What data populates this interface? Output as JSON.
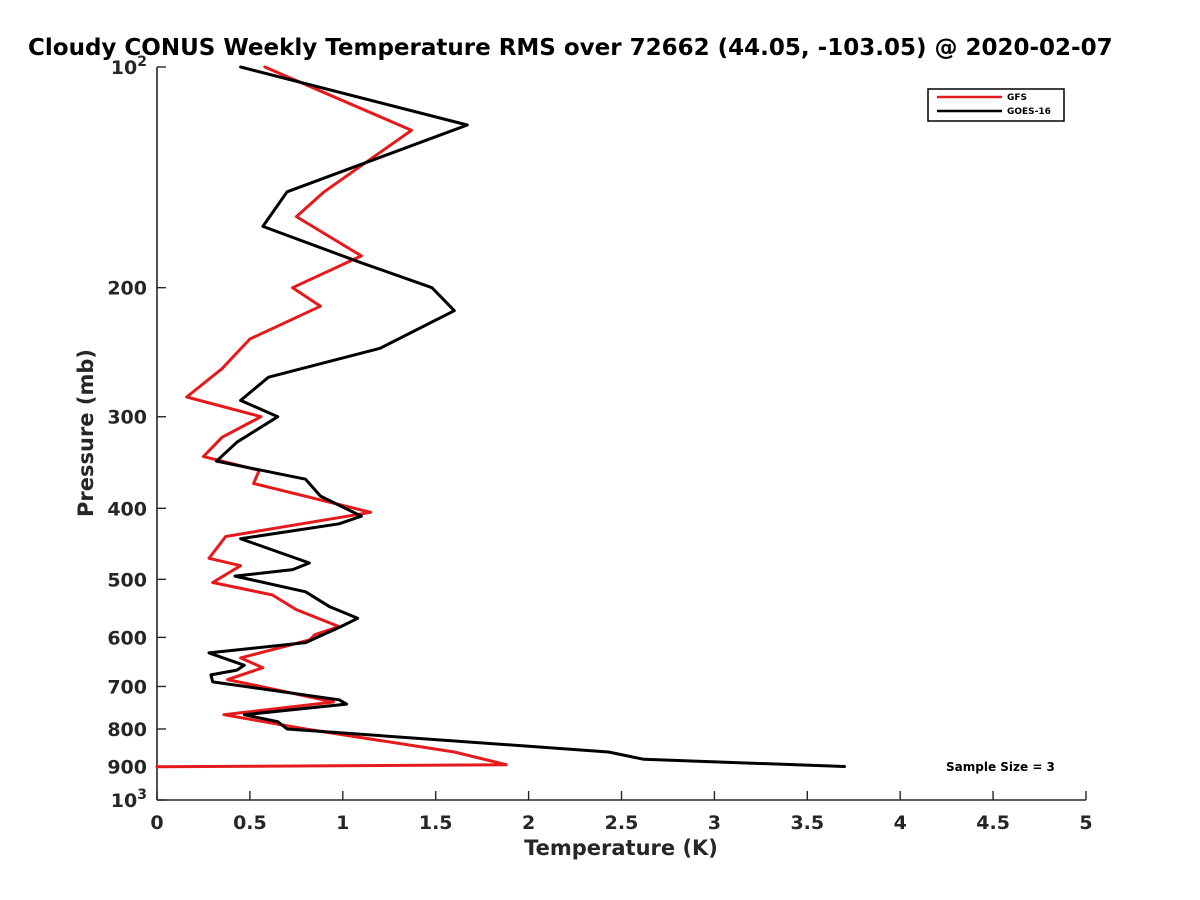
{
  "chart_data": {
    "type": "line",
    "title": "Cloudy CONUS Weekly Temperature RMS over 72662 (44.05, -103.05) @ 2020-02-07",
    "xlabel": "Temperature (K)",
    "ylabel": "Pressure (mb)",
    "xlim": [
      0,
      5
    ],
    "ylim": [
      100,
      1000
    ],
    "yscale": "log",
    "y_reversed": true,
    "x_ticks": [
      "0",
      "0.5",
      "1",
      "1.5",
      "2",
      "2.5",
      "3",
      "3.5",
      "4",
      "4.5",
      "5"
    ],
    "y_ticks": [
      {
        "value": 100,
        "base": "10",
        "exp": "2"
      },
      {
        "value": 200,
        "label": "200"
      },
      {
        "value": 300,
        "label": "300"
      },
      {
        "value": 400,
        "label": "400"
      },
      {
        "value": 500,
        "label": "500"
      },
      {
        "value": 600,
        "label": "600"
      },
      {
        "value": 700,
        "label": "700"
      },
      {
        "value": 800,
        "label": "800"
      },
      {
        "value": 900,
        "label": "900"
      },
      {
        "value": 1000,
        "base": "10",
        "exp": "3"
      }
    ],
    "legend_position": "top-right",
    "annotation": "Sample Size = 3",
    "series": [
      {
        "name": "GFS",
        "color": "#e41a1c",
        "points": [
          [
            0.58,
            100
          ],
          [
            1.37,
            122
          ],
          [
            0.9,
            148
          ],
          [
            0.75,
            160
          ],
          [
            1.1,
            181
          ],
          [
            0.73,
            200
          ],
          [
            0.88,
            212
          ],
          [
            0.5,
            235
          ],
          [
            0.35,
            258
          ],
          [
            0.16,
            282
          ],
          [
            0.56,
            300
          ],
          [
            0.35,
            320
          ],
          [
            0.25,
            340
          ],
          [
            0.55,
            355
          ],
          [
            0.52,
            370
          ],
          [
            1.15,
            405
          ],
          [
            0.37,
            437
          ],
          [
            0.28,
            468
          ],
          [
            0.45,
            479
          ],
          [
            0.3,
            505
          ],
          [
            0.62,
            525
          ],
          [
            0.75,
            550
          ],
          [
            0.98,
            580
          ],
          [
            0.85,
            595
          ],
          [
            0.82,
            605
          ],
          [
            0.45,
            640
          ],
          [
            0.57,
            660
          ],
          [
            0.38,
            685
          ],
          [
            0.5,
            695
          ],
          [
            0.95,
            735
          ],
          [
            0.36,
            765
          ],
          [
            0.8,
            800
          ],
          [
            1.6,
            860
          ],
          [
            1.88,
            895
          ],
          [
            0.0,
            901
          ]
        ]
      },
      {
        "name": "GOES-16",
        "color": "#000000",
        "points": [
          [
            0.45,
            100
          ],
          [
            1.67,
            120
          ],
          [
            0.7,
            148
          ],
          [
            0.57,
            165
          ],
          [
            1.1,
            185
          ],
          [
            1.48,
            200
          ],
          [
            1.6,
            215
          ],
          [
            1.2,
            242
          ],
          [
            0.6,
            265
          ],
          [
            0.45,
            285
          ],
          [
            0.65,
            300
          ],
          [
            0.43,
            325
          ],
          [
            0.32,
            345
          ],
          [
            0.8,
            365
          ],
          [
            0.88,
            385
          ],
          [
            1.1,
            410
          ],
          [
            0.98,
            420
          ],
          [
            0.45,
            440
          ],
          [
            0.82,
            475
          ],
          [
            0.73,
            485
          ],
          [
            0.42,
            495
          ],
          [
            0.8,
            520
          ],
          [
            0.93,
            545
          ],
          [
            1.08,
            565
          ],
          [
            0.99,
            580
          ],
          [
            0.8,
            610
          ],
          [
            0.28,
            630
          ],
          [
            0.47,
            655
          ],
          [
            0.43,
            665
          ],
          [
            0.29,
            675
          ],
          [
            0.3,
            690
          ],
          [
            0.98,
            730
          ],
          [
            1.02,
            740
          ],
          [
            0.47,
            765
          ],
          [
            0.65,
            782
          ],
          [
            0.7,
            800
          ],
          [
            2.43,
            860
          ],
          [
            2.62,
            880
          ],
          [
            3.7,
            900
          ]
        ]
      }
    ]
  }
}
